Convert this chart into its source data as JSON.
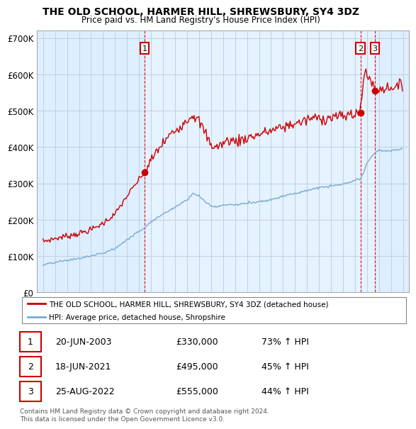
{
  "title": "THE OLD SCHOOL, HARMER HILL, SHREWSBURY, SY4 3DZ",
  "subtitle": "Price paid vs. HM Land Registry's House Price Index (HPI)",
  "ylim": [
    0,
    720000
  ],
  "yticks": [
    0,
    100000,
    200000,
    300000,
    400000,
    500000,
    600000,
    700000
  ],
  "ytick_labels": [
    "£0",
    "£100K",
    "£200K",
    "£300K",
    "£400K",
    "£500K",
    "£600K",
    "£700K"
  ],
  "red_color": "#cc0000",
  "blue_color": "#7aabcf",
  "dashed_color": "#cc0000",
  "bg_color": "#ddeeff",
  "chart_bg": "#ddeeff",
  "grid_color": "#bbccdd",
  "legend_label_red": "THE OLD SCHOOL, HARMER HILL, SHREWSBURY, SY4 3DZ (detached house)",
  "legend_label_blue": "HPI: Average price, detached house, Shropshire",
  "transactions": [
    {
      "id": 1,
      "date_x": 2003.46,
      "price": 330000,
      "label": "1"
    },
    {
      "id": 2,
      "date_x": 2021.46,
      "price": 495000,
      "label": "2"
    },
    {
      "id": 3,
      "date_x": 2022.65,
      "price": 555000,
      "label": "3"
    }
  ],
  "table_rows": [
    {
      "num": "1",
      "date": "20-JUN-2003",
      "price": "£330,000",
      "change": "73% ↑ HPI"
    },
    {
      "num": "2",
      "date": "18-JUN-2021",
      "price": "£495,000",
      "change": "45% ↑ HPI"
    },
    {
      "num": "3",
      "date": "25-AUG-2022",
      "price": "£555,000",
      "change": "44% ↑ HPI"
    }
  ],
  "footer": "Contains HM Land Registry data © Crown copyright and database right 2024.\nThis data is licensed under the Open Government Licence v3.0.",
  "xmin": 1994.5,
  "xmax": 2025.5
}
